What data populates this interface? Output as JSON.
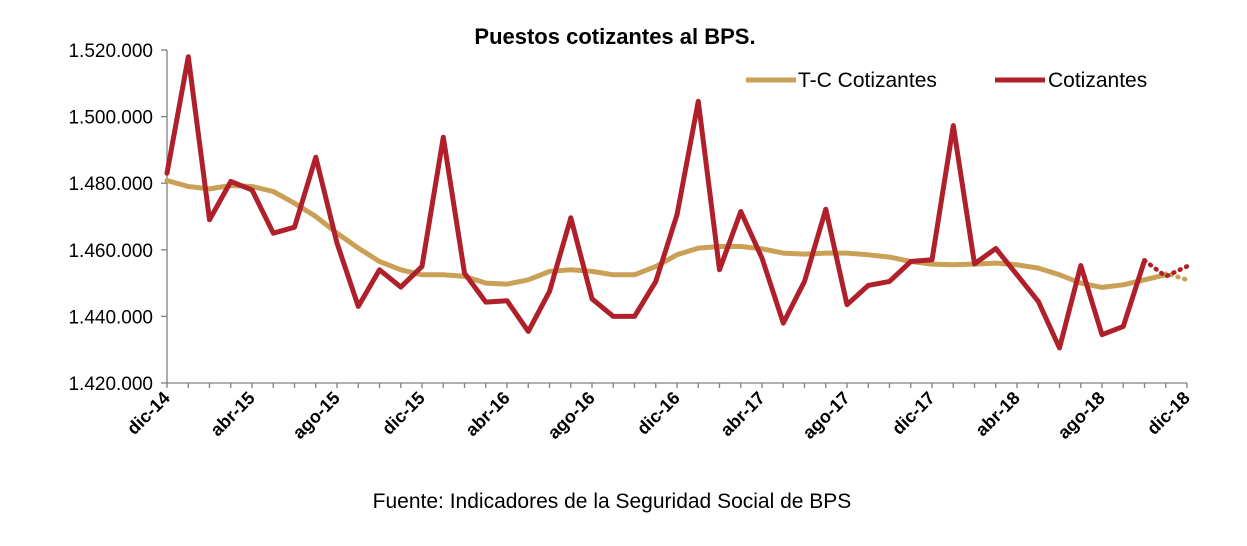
{
  "chart_data": {
    "type": "line",
    "title": "Puestos cotizantes al BPS.",
    "source": "Fuente: Indicadores de la Seguridad Social de BPS",
    "ylim": [
      1420000,
      1520000
    ],
    "ytick_values": [
      1420000,
      1440000,
      1460000,
      1480000,
      1500000,
      1520000
    ],
    "ytick_labels": [
      "1.420.000",
      "1.440.000",
      "1.460.000",
      "1.480.000",
      "1.500.000",
      "1.520.000"
    ],
    "x_count": 49,
    "xtick_labels": [
      "dic-14",
      "abr-15",
      "ago-15",
      "dic-15",
      "abr-16",
      "ago-16",
      "dic-16",
      "abr-17",
      "ago-17",
      "dic-17",
      "abr-18",
      "ago-18",
      "dic-18"
    ],
    "xtick_every": 4,
    "legend_position": "top-right",
    "grid": false,
    "series": [
      {
        "name": "T-C Cotizantes",
        "color": "#C9A056",
        "values": [
          1480800,
          1479000,
          1478300,
          1479300,
          1479000,
          1477500,
          1474000,
          1470000,
          1465000,
          1460500,
          1456500,
          1454000,
          1452500,
          1452500,
          1452000,
          1450000,
          1449700,
          1451000,
          1453500,
          1454000,
          1453500,
          1452500,
          1452500,
          1455000,
          1458500,
          1460500,
          1461000,
          1461000,
          1460300,
          1459000,
          1458700,
          1459000,
          1459000,
          1458500,
          1457800,
          1456500,
          1455700,
          1455500,
          1455700,
          1456000,
          1455500,
          1454500,
          1452500,
          1450000,
          1448700,
          1449500,
          1451000,
          1452500,
          null
        ],
        "forecast": [
          1453000,
          1451000
        ],
        "forecast_indices": [
          47,
          48
        ]
      },
      {
        "name": "Cotizantes",
        "color": "#B0202A",
        "values": [
          1483000,
          1518000,
          1469000,
          1480500,
          1478000,
          1465000,
          1466800,
          1487800,
          1462000,
          1443000,
          1454000,
          1448800,
          1455000,
          1493800,
          1453000,
          1444300,
          1444700,
          1435500,
          1447500,
          1469600,
          1445300,
          1440000,
          1440000,
          1450500,
          1470500,
          1504600,
          1454000,
          1471500,
          1457500,
          1438000,
          1450500,
          1472200,
          1443500,
          1449300,
          1450500,
          1456500,
          1457000,
          1497300,
          1455800,
          1460400,
          1452500,
          1444500,
          1430500,
          1455300,
          1434500,
          1437000,
          1456800,
          null,
          null
        ],
        "forecast": [
          1452000,
          1455000
        ],
        "forecast_indices": [
          47,
          48
        ]
      }
    ]
  }
}
